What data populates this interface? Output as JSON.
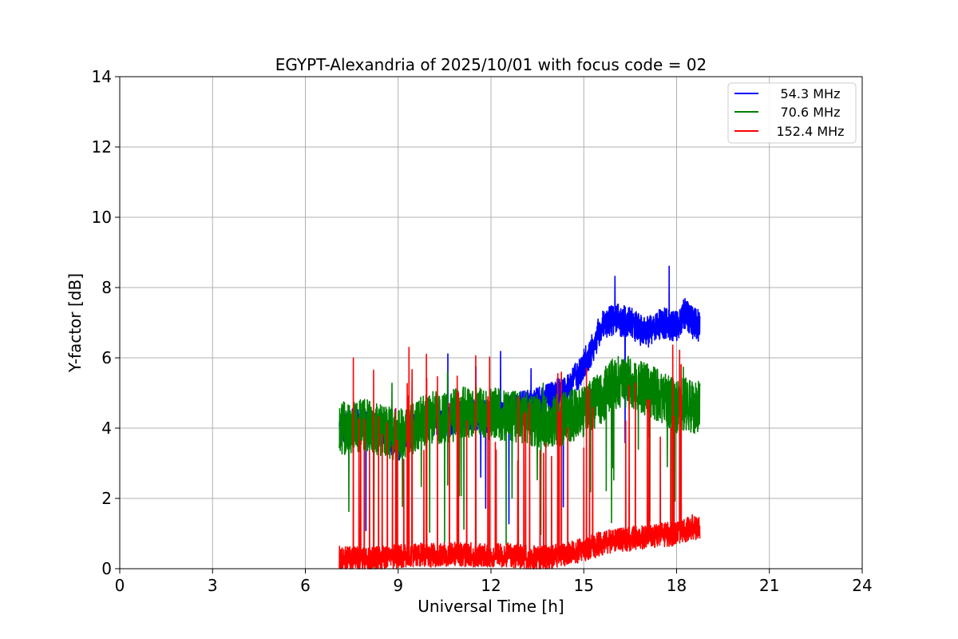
{
  "chart_data": {
    "type": "line",
    "title": "EGYPT-Alexandria of 2025/10/01 with focus code = 02",
    "xlabel": "Universal Time [h]",
    "ylabel": "Y-factor [dB]",
    "xlim": [
      0,
      24
    ],
    "ylim": [
      0,
      14
    ],
    "xticks": [
      0,
      3,
      6,
      9,
      12,
      15,
      18,
      21,
      24
    ],
    "yticks": [
      0,
      2,
      4,
      6,
      8,
      10,
      12,
      14
    ],
    "grid": true,
    "legend_position": "top-right",
    "series": [
      {
        "name": "54.3 MHz",
        "color": "#0000ff",
        "x": [
          7.1,
          7.5,
          8.0,
          8.5,
          9.0,
          9.5,
          10.0,
          10.5,
          11.0,
          11.5,
          12.0,
          12.5,
          13.0,
          13.5,
          14.0,
          14.5,
          15.0,
          15.3,
          15.6,
          16.0,
          16.5,
          17.0,
          17.5,
          18.0,
          18.3,
          18.5,
          18.75
        ],
        "y": [
          4.0,
          4.1,
          4.1,
          3.9,
          3.5,
          4.0,
          4.3,
          4.2,
          4.3,
          4.4,
          4.3,
          4.5,
          4.6,
          4.7,
          4.9,
          5.1,
          5.8,
          6.3,
          7.0,
          7.1,
          7.0,
          6.7,
          7.0,
          6.9,
          7.3,
          7.0,
          6.9
        ]
      },
      {
        "name": "70.6 MHz",
        "color": "#008000",
        "x": [
          7.1,
          7.5,
          8.0,
          8.5,
          9.0,
          9.5,
          10.0,
          10.5,
          11.0,
          11.5,
          12.0,
          12.5,
          13.0,
          13.5,
          14.0,
          14.5,
          15.0,
          15.5,
          16.0,
          16.5,
          17.0,
          17.5,
          18.0,
          18.3,
          18.5,
          18.75
        ],
        "y": [
          4.0,
          4.0,
          4.1,
          3.9,
          3.8,
          4.0,
          4.3,
          4.3,
          4.4,
          4.5,
          4.4,
          4.4,
          4.3,
          4.2,
          4.2,
          4.3,
          4.5,
          4.8,
          5.3,
          5.3,
          5.1,
          4.9,
          4.6,
          4.7,
          4.6,
          4.6
        ]
      },
      {
        "name": "152.4 MHz",
        "color": "#ff0000",
        "x": [
          7.1,
          7.5,
          8.0,
          8.5,
          9.0,
          9.5,
          10.0,
          10.5,
          11.0,
          11.5,
          12.0,
          12.5,
          13.0,
          13.5,
          14.0,
          14.5,
          15.0,
          15.5,
          16.0,
          16.5,
          17.0,
          17.5,
          18.0,
          18.3,
          18.5,
          18.75
        ],
        "y": [
          0.3,
          0.3,
          0.25,
          0.3,
          0.35,
          0.4,
          0.4,
          0.4,
          0.4,
          0.4,
          0.4,
          0.4,
          0.35,
          0.3,
          0.35,
          0.45,
          0.55,
          0.7,
          0.8,
          0.85,
          0.9,
          0.95,
          1.0,
          1.1,
          1.2,
          1.1
        ]
      }
    ]
  }
}
